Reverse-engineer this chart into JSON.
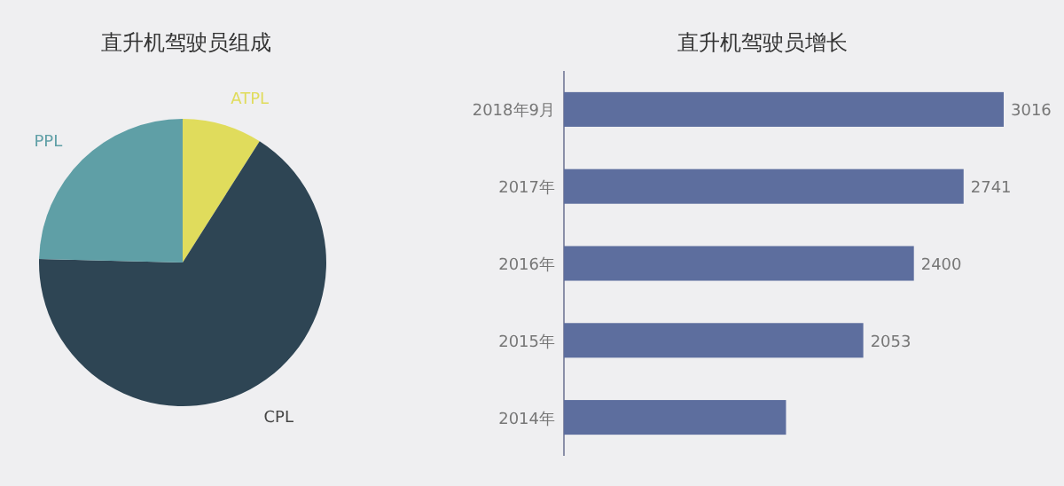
{
  "chart_data": [
    {
      "type": "pie",
      "title": "直升机驾驶员组成",
      "categories": [
        "ATPL",
        "CPL",
        "PPL"
      ],
      "values": [
        9,
        66.4,
        24.6
      ],
      "colors": [
        "#e0dc5c",
        "#2e4554",
        "#5f9fa6"
      ]
    },
    {
      "type": "bar",
      "orientation": "horizontal",
      "title": "直升机驾驶员增长",
      "categories": [
        "2018年9月",
        "2017年",
        "2016年",
        "2015年",
        "2014年"
      ],
      "values": [
        3016,
        2741,
        2400,
        2053,
        1523
      ],
      "value_labels": [
        "3016",
        "2741",
        "2400",
        "2053",
        null
      ],
      "color": "#5d6e9e"
    }
  ]
}
